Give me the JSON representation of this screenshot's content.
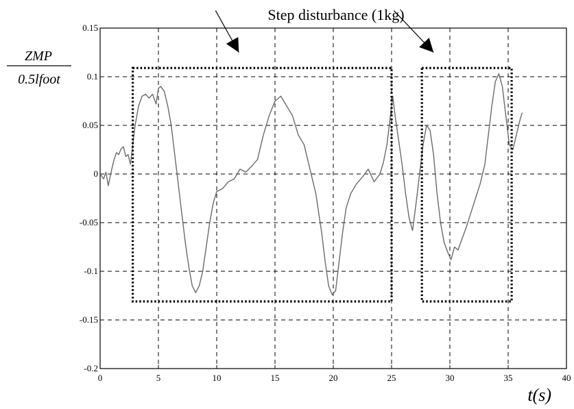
{
  "chart_data": {
    "type": "line",
    "xlabel": "t(s)",
    "ylabel_num": "ZMP",
    "ylabel_den": "0.5lfoot",
    "annotation": "Step disturbance (1kg)",
    "xlim": [
      0,
      40
    ],
    "ylim": [
      -0.2,
      0.15
    ],
    "xticks": [
      0,
      5,
      10,
      15,
      20,
      25,
      30,
      35,
      40
    ],
    "yticks": [
      -0.2,
      -0.15,
      -0.1,
      -0.05,
      0,
      0.05,
      0.1,
      0.15
    ],
    "xtick_labels": [
      "0",
      "5",
      "10",
      "15",
      "20",
      "25",
      "30",
      "35",
      "40"
    ],
    "ytick_labels": [
      "-0.2",
      "-0.15",
      "-0.1",
      "-0.05",
      "0",
      "0.05",
      "0.1",
      "0.15"
    ],
    "grid": true,
    "line_color": "#6a6a6a",
    "series": [
      {
        "x": [
          0,
          0.3,
          0.5,
          0.7,
          1.0,
          1.2,
          1.4,
          1.6,
          1.8,
          2.0,
          2.2,
          2.4,
          2.6,
          2.8,
          3.0,
          3.3,
          3.6,
          3.9,
          4.2,
          4.5,
          4.8,
          5.0,
          5.2,
          5.5,
          5.8,
          6.1,
          6.4,
          6.7,
          7.0,
          7.3,
          7.6,
          7.9,
          8.2,
          8.5,
          8.8,
          9.1,
          9.4,
          9.7,
          10.0,
          10.5,
          11.0,
          11.5,
          12.0,
          12.5,
          13.0,
          13.5,
          14.0,
          14.5,
          15.0,
          15.5,
          16.0,
          16.5,
          17.0,
          17.5,
          18.0,
          18.5,
          19.0,
          19.3,
          19.6,
          19.9,
          20.2,
          20.5,
          20.8,
          21.1,
          21.5,
          22.0,
          22.5,
          23.0,
          23.5,
          24.0,
          24.3,
          24.6,
          24.9,
          25.1,
          25.3,
          25.6,
          25.9,
          26.2,
          26.5,
          26.8,
          27.1,
          27.4,
          27.7,
          28.0,
          28.3,
          28.6,
          28.9,
          29.2,
          29.5,
          29.8,
          30.1,
          30.4,
          30.7,
          31.0,
          31.4,
          31.8,
          32.2,
          32.6,
          33.0,
          33.3,
          33.6,
          33.9,
          34.2,
          34.5,
          34.8,
          35.1,
          35.4,
          35.7,
          36.0,
          36.2
        ],
        "y": [
          0,
          -0.005,
          0.002,
          -0.012,
          0.005,
          0.015,
          0.022,
          0.02,
          0.026,
          0.028,
          0.018,
          0.02,
          0.01,
          0.03,
          0.05,
          0.07,
          0.08,
          0.082,
          0.078,
          0.082,
          0.072,
          0.088,
          0.09,
          0.085,
          0.07,
          0.05,
          0.02,
          -0.01,
          -0.04,
          -0.07,
          -0.095,
          -0.115,
          -0.122,
          -0.115,
          -0.1,
          -0.075,
          -0.05,
          -0.03,
          -0.018,
          -0.015,
          -0.008,
          -0.005,
          0.005,
          0.002,
          0.008,
          0.015,
          0.04,
          0.06,
          0.075,
          0.08,
          0.07,
          0.06,
          0.04,
          0.03,
          0.005,
          -0.02,
          -0.06,
          -0.09,
          -0.115,
          -0.124,
          -0.12,
          -0.09,
          -0.06,
          -0.035,
          -0.02,
          -0.01,
          -0.003,
          0.005,
          -0.008,
          0.0,
          0.012,
          0.03,
          0.06,
          0.08,
          0.06,
          0.035,
          0.01,
          -0.02,
          -0.045,
          -0.058,
          -0.03,
          0.0,
          0.03,
          0.05,
          0.045,
          0.02,
          -0.02,
          -0.05,
          -0.07,
          -0.08,
          -0.088,
          -0.075,
          -0.078,
          -0.068,
          -0.055,
          -0.04,
          -0.025,
          -0.01,
          0.01,
          0.04,
          0.07,
          0.095,
          0.103,
          0.09,
          0.06,
          0.03,
          0.025,
          0.04,
          0.055,
          0.063
        ]
      }
    ],
    "boxes": [
      {
        "x0": 2.8,
        "x1": 25.0,
        "y0": -0.131,
        "y1": 0.109
      },
      {
        "x0": 27.6,
        "x1": 35.3,
        "y0": -0.131,
        "y1": 0.109
      }
    ],
    "arrows": [
      {
        "from": [
          9.9,
          0.168
        ],
        "to": [
          11.9,
          0.125
        ]
      },
      {
        "from": [
          25.2,
          0.168
        ],
        "to": [
          28.6,
          0.125
        ]
      }
    ]
  }
}
